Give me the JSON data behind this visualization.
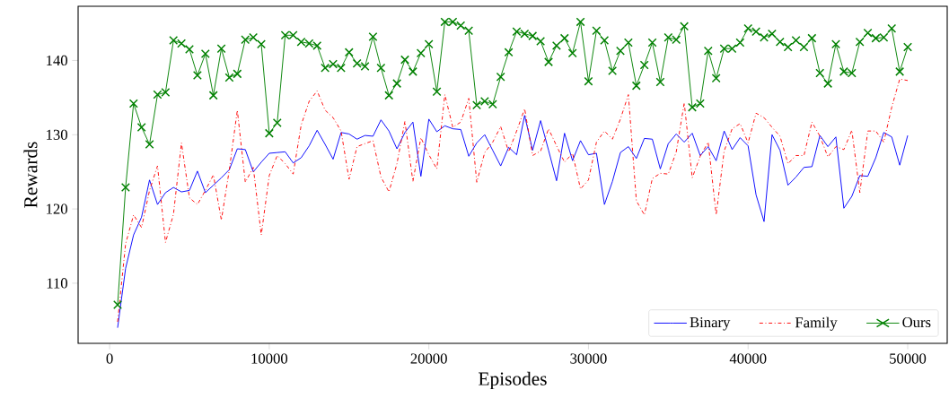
{
  "chart_data": {
    "type": "line",
    "xlabel": "Episodes",
    "ylabel": "Rewards",
    "x": [
      500,
      1000,
      1500,
      2000,
      2500,
      3000,
      3500,
      4000,
      4500,
      5000,
      5500,
      6000,
      6500,
      7000,
      7500,
      8000,
      8500,
      9000,
      9500,
      10000,
      10500,
      11000,
      11500,
      12000,
      12500,
      13000,
      13500,
      14000,
      14500,
      15000,
      15500,
      16000,
      16500,
      17000,
      17500,
      18000,
      18500,
      19000,
      19500,
      20000,
      20500,
      21000,
      21500,
      22000,
      22500,
      23000,
      23500,
      24000,
      24500,
      25000,
      25500,
      26000,
      26500,
      27000,
      27500,
      28000,
      28500,
      29000,
      29500,
      30000,
      30500,
      31000,
      31500,
      32000,
      32500,
      33000,
      33500,
      34000,
      34500,
      35000,
      35500,
      36000,
      36500,
      37000,
      37500,
      38000,
      38500,
      39000,
      39500,
      40000,
      40500,
      41000,
      41500,
      42000,
      42500,
      43000,
      43500,
      44000,
      44500,
      45000,
      45500,
      46000,
      46500,
      47000,
      47500,
      48000,
      48500,
      49000,
      49500,
      50000
    ],
    "series": [
      {
        "name": "Binary",
        "color": "#0000ff",
        "values": [
          104.0,
          112.0,
          116.5,
          118.9,
          123.9,
          120.6,
          122.2,
          122.9,
          122.3,
          122.5,
          125.1,
          122.2,
          123.2,
          124.2,
          125.3,
          128.1,
          128.0,
          125.0,
          126.3,
          127.5,
          127.6,
          127.7,
          126.2,
          126.9,
          128.5,
          130.6,
          128.7,
          126.7,
          130.3,
          130.1,
          129.4,
          129.9,
          129.8,
          132.0,
          130.5,
          128.1,
          130.3,
          131.7,
          124.4,
          132.1,
          130.4,
          131.2,
          130.8,
          130.7,
          127.1,
          128.9,
          130.0,
          127.9,
          125.8,
          128.3,
          127.3,
          132.6,
          127.9,
          131.9,
          127.9,
          123.8,
          130.2,
          126.5,
          129.2,
          127.3,
          127.5,
          120.6,
          123.7,
          127.6,
          128.4,
          126.8,
          129.5,
          129.4,
          125.4,
          128.8,
          130.1,
          129.0,
          130.2,
          127.2,
          128.4,
          126.5,
          130.5,
          128.0,
          129.6,
          128.5,
          121.9,
          118.3,
          130.0,
          127.9,
          123.2,
          124.3,
          125.6,
          125.7,
          129.9,
          128.4,
          129.7,
          120.1,
          121.7,
          124.5,
          124.4,
          126.9,
          130.3,
          129.7,
          125.9,
          129.9
        ]
      },
      {
        "name": "Family",
        "color": "#ff0000",
        "line_style": "dashdot",
        "values": [
          104.8,
          115.3,
          119.2,
          117.5,
          122.5,
          125.8,
          115.5,
          119.3,
          128.9,
          121.5,
          120.6,
          122.5,
          124.6,
          118.5,
          125.3,
          133.3,
          123.6,
          125.6,
          116.5,
          124.5,
          127.2,
          126.1,
          124.7,
          131.3,
          134.5,
          135.9,
          133.3,
          132.3,
          130.5,
          124.0,
          128.4,
          128.8,
          129.2,
          124.3,
          122.3,
          126.1,
          131.8,
          123.7,
          129.6,
          127.3,
          125.4,
          135.4,
          131.0,
          131.7,
          134.9,
          123.6,
          127.6,
          129.0,
          131.1,
          127.7,
          130.5,
          133.5,
          127.2,
          127.8,
          130.8,
          128.5,
          126.3,
          127.5,
          122.7,
          123.9,
          129.0,
          130.5,
          129.4,
          132.1,
          135.4,
          121.1,
          119.2,
          124.1,
          124.8,
          124.7,
          127.7,
          134.3,
          124.2,
          127.1,
          129.0,
          119.2,
          127.8,
          130.8,
          131.5,
          128.9,
          132.9,
          132.3,
          131.0,
          129.8,
          126.1,
          127.2,
          127.2,
          131.7,
          129.8,
          127.0,
          128.4,
          128.0,
          130.6,
          122.2,
          130.5,
          130.5,
          129.0,
          133.7,
          137.5,
          137.3
        ]
      },
      {
        "name": "Ours",
        "color": "#008000",
        "marker": "cross",
        "values": [
          107.1,
          122.9,
          134.2,
          131.0,
          128.7,
          135.4,
          135.7,
          142.7,
          142.3,
          141.5,
          138.0,
          140.9,
          135.3,
          141.6,
          137.7,
          138.2,
          142.8,
          143.1,
          142.2,
          130.2,
          131.6,
          143.4,
          143.4,
          142.5,
          142.3,
          142.0,
          139.0,
          139.5,
          139.0,
          141.1,
          139.6,
          139.2,
          143.2,
          139.0,
          135.3,
          136.9,
          140.1,
          138.5,
          141.0,
          142.2,
          135.8,
          145.2,
          145.2,
          144.7,
          144.0,
          134.0,
          134.5,
          134.1,
          137.8,
          141.1,
          143.9,
          143.6,
          143.3,
          142.6,
          139.8,
          142.0,
          143.0,
          141.0,
          145.2,
          137.2,
          144.0,
          142.7,
          138.6,
          141.3,
          142.4,
          136.6,
          139.4,
          142.4,
          137.1,
          143.1,
          142.8,
          144.6,
          133.7,
          134.2,
          141.3,
          137.6,
          141.6,
          141.6,
          142.4,
          144.3,
          143.9,
          143.1,
          143.6,
          142.5,
          141.8,
          142.7,
          141.8,
          143.0,
          138.3,
          136.9,
          142.2,
          138.5,
          138.3,
          142.5,
          143.7,
          143.0,
          143.1,
          144.3,
          138.5,
          141.8
        ]
      }
    ],
    "xlim": [
      -1975,
      52475
    ],
    "ylim": [
      101.9,
      147.3
    ],
    "xticks": [
      0,
      10000,
      20000,
      30000,
      40000,
      50000
    ],
    "yticks": [
      110,
      120,
      130,
      140
    ],
    "legend": "bottom right"
  }
}
